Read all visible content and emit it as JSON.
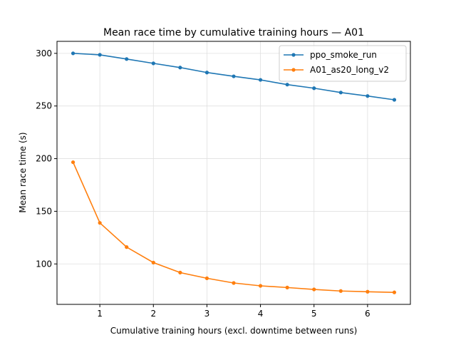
{
  "chart_data": {
    "type": "line",
    "title": "Mean race time by cumulative training hours — A01",
    "xlabel": "Cumulative training hours (excl. downtime between runs)",
    "ylabel": "Mean race time (s)",
    "xlim": [
      0.2,
      6.8
    ],
    "ylim": [
      61.6,
      311.4
    ],
    "xticks": [
      1,
      2,
      3,
      4,
      5,
      6
    ],
    "yticks": [
      100,
      150,
      200,
      250,
      300
    ],
    "grid": true,
    "legend_position": "top-right",
    "x": [
      0.5,
      1.0,
      1.5,
      2.0,
      2.5,
      3.0,
      3.5,
      4.0,
      4.5,
      5.0,
      5.5,
      6.0,
      6.5
    ],
    "series": [
      {
        "name": "ppo_smoke_run",
        "color": "#1f77b4",
        "values": [
          300.0,
          298.6,
          294.6,
          290.5,
          286.5,
          281.8,
          278.2,
          274.8,
          270.3,
          266.9,
          262.8,
          259.5,
          255.9
        ]
      },
      {
        "name": "A01_as20_long_v2",
        "color": "#ff7f0e",
        "values": [
          196.6,
          139.0,
          116.0,
          101.3,
          91.8,
          86.4,
          81.9,
          79.2,
          77.6,
          75.8,
          74.3,
          73.6,
          73.0
        ]
      }
    ]
  }
}
